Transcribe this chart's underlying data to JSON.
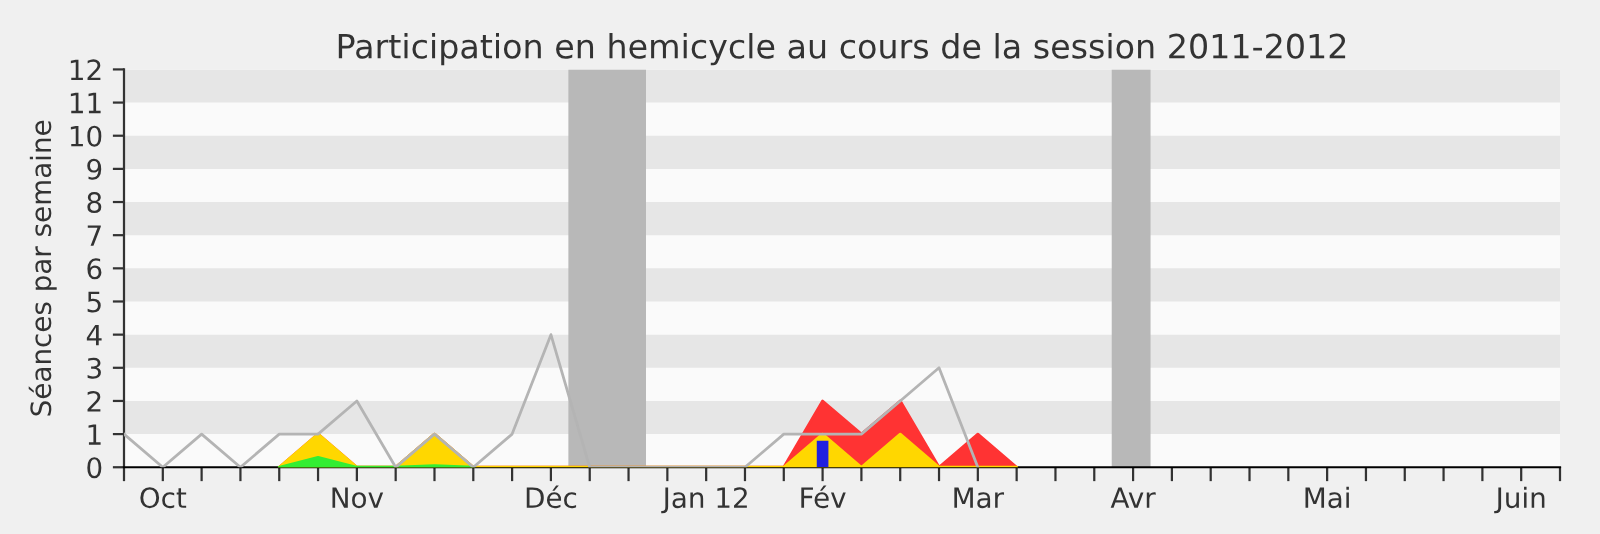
{
  "chart_data": {
    "type": "area",
    "title": "Participation en hemicycle au cours de la session 2011-2012",
    "ylabel": "Séances par semaine",
    "categories": [
      null,
      "Oct",
      null,
      null,
      null,
      null,
      "Nov",
      null,
      null,
      null,
      null,
      "Déc",
      null,
      null,
      null,
      "Jan 12",
      null,
      null,
      "Fév",
      null,
      null,
      null,
      "Mar",
      null,
      null,
      null,
      "Avr",
      null,
      null,
      null,
      null,
      "Mai",
      null,
      null,
      null,
      null,
      "Juin",
      null
    ],
    "series": [
      {
        "color": "#ff3333",
        "values": [
          null,
          null,
          null,
          null,
          0,
          1,
          0,
          0,
          1,
          0,
          0,
          0,
          0,
          0,
          0,
          0,
          0,
          0,
          2,
          1,
          2,
          0,
          1,
          0,
          null,
          null,
          null,
          null,
          null,
          null,
          null,
          null,
          null,
          null,
          null,
          null,
          null,
          null
        ]
      },
      {
        "color": "#ffd700",
        "values": [
          null,
          null,
          null,
          null,
          0,
          1,
          0,
          0,
          1,
          0,
          0,
          0,
          0,
          0,
          0,
          0,
          0,
          0,
          1,
          0,
          1,
          0,
          0,
          0,
          null,
          null,
          null,
          null,
          null,
          null,
          null,
          null,
          null,
          null,
          null,
          null,
          null,
          null
        ]
      },
      {
        "color": "#33ee33",
        "values": [
          null,
          null,
          null,
          null,
          0,
          0.3,
          0,
          0,
          0.05,
          0,
          null,
          null,
          null,
          null,
          null,
          null,
          null,
          null,
          null,
          null,
          null,
          null,
          null,
          null,
          null,
          null,
          null,
          null,
          null,
          null,
          null,
          null,
          null,
          null,
          null,
          null,
          null,
          null
        ]
      },
      {
        "type": "line",
        "color": "#b4b4b4",
        "values": [
          1,
          0,
          1,
          0,
          1,
          1,
          2,
          0,
          1,
          0,
          1,
          4,
          0,
          0,
          0,
          0,
          0,
          1,
          1,
          1,
          2,
          3,
          0,
          null,
          null,
          null,
          null,
          null,
          null,
          null,
          null,
          null,
          null,
          null,
          null,
          null,
          null,
          null
        ]
      },
      {
        "type": "bar",
        "color": "#2020e0",
        "values": [
          null,
          null,
          null,
          null,
          null,
          null,
          null,
          null,
          null,
          null,
          null,
          null,
          null,
          null,
          null,
          null,
          null,
          null,
          0.8,
          null,
          null,
          null,
          null,
          null,
          null,
          null,
          null,
          null,
          null,
          null,
          null,
          null,
          null,
          null,
          null,
          null,
          null,
          null
        ]
      }
    ],
    "ylim": [
      0,
      12
    ],
    "yticks": [
      0,
      1,
      2,
      3,
      4,
      5,
      6,
      7,
      8,
      9,
      10,
      11,
      12
    ]
  }
}
